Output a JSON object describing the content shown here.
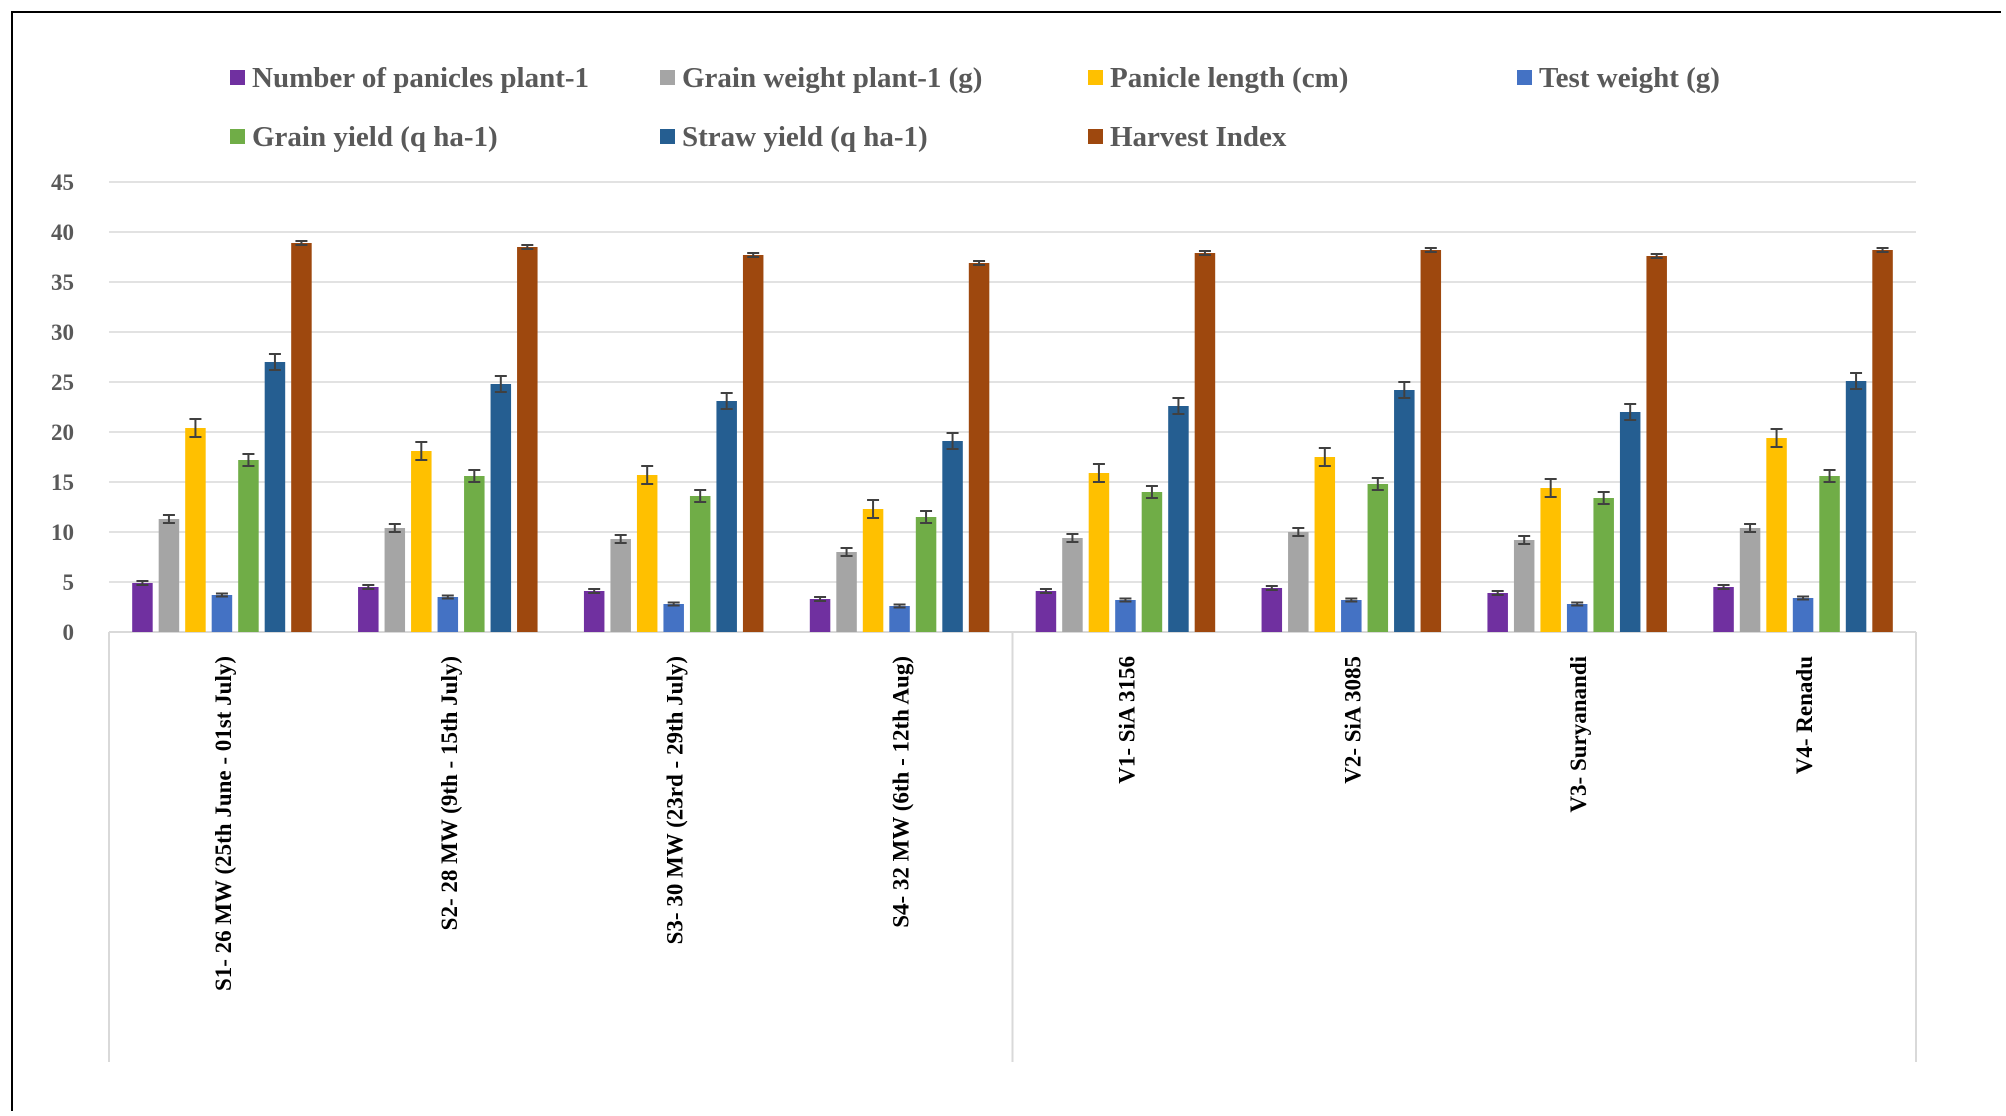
{
  "chart_data": {
    "type": "bar",
    "title": "",
    "xlabel": "",
    "ylabel": "",
    "ylim": [
      0,
      45
    ],
    "yticks": [
      0,
      5,
      10,
      15,
      20,
      25,
      30,
      35,
      40,
      45
    ],
    "grid": true,
    "legend_position": "top",
    "categories": [
      "S1- 26 MW (25th June - 01st July)",
      "S2- 28 MW (9th - 15th July)",
      "S3- 30 MW (23rd - 29th July)",
      "S4- 32 MW (6th - 12th Aug)",
      "V1- SiA 3156",
      "V2- SiA 3085",
      "V3- Suryanandi",
      "V4- Renadu"
    ],
    "category_groups": [
      [
        0,
        1,
        2,
        3
      ],
      [
        4,
        5,
        6,
        7
      ]
    ],
    "series": [
      {
        "name": "Number of panicles plant-1",
        "color": "#7030A0",
        "values": [
          4.9,
          4.5,
          4.1,
          3.3,
          4.1,
          4.4,
          3.9,
          4.5
        ],
        "errors": [
          0.2,
          0.2,
          0.2,
          0.2,
          0.2,
          0.2,
          0.2,
          0.2
        ]
      },
      {
        "name": "Grain weight plant-1 (g)",
        "color": "#A5A5A5",
        "values": [
          11.3,
          10.4,
          9.3,
          8.0,
          9.4,
          10.0,
          9.2,
          10.4
        ],
        "errors": [
          0.4,
          0.4,
          0.4,
          0.4,
          0.4,
          0.4,
          0.4,
          0.4
        ]
      },
      {
        "name": "Panicle length (cm)",
        "color": "#FFC000",
        "values": [
          20.4,
          18.1,
          15.7,
          12.3,
          15.9,
          17.5,
          14.4,
          19.4
        ],
        "errors": [
          0.9,
          0.9,
          0.9,
          0.9,
          0.9,
          0.9,
          0.9,
          0.9
        ]
      },
      {
        "name": "Test weight (g)",
        "color": "#4472C4",
        "values": [
          3.7,
          3.5,
          2.8,
          2.6,
          3.2,
          3.2,
          2.8,
          3.4
        ],
        "errors": [
          0.15,
          0.15,
          0.15,
          0.15,
          0.15,
          0.15,
          0.15,
          0.15
        ]
      },
      {
        "name": "Grain yield (q ha-1)",
        "color": "#70AD47",
        "values": [
          17.2,
          15.6,
          13.6,
          11.5,
          14.0,
          14.8,
          13.4,
          15.6
        ],
        "errors": [
          0.6,
          0.6,
          0.6,
          0.6,
          0.6,
          0.6,
          0.6,
          0.6
        ]
      },
      {
        "name": "Straw yield (q ha-1)",
        "color": "#255E91",
        "values": [
          27.0,
          24.8,
          23.1,
          19.1,
          22.6,
          24.2,
          22.0,
          25.1
        ],
        "errors": [
          0.8,
          0.8,
          0.8,
          0.8,
          0.8,
          0.8,
          0.8,
          0.8
        ]
      },
      {
        "name": "Harvest Index",
        "color": "#9E480E",
        "values": [
          38.9,
          38.5,
          37.7,
          36.9,
          37.9,
          38.2,
          37.6,
          38.2
        ],
        "errors": [
          0.2,
          0.2,
          0.2,
          0.2,
          0.2,
          0.2,
          0.2,
          0.2
        ]
      }
    ]
  }
}
